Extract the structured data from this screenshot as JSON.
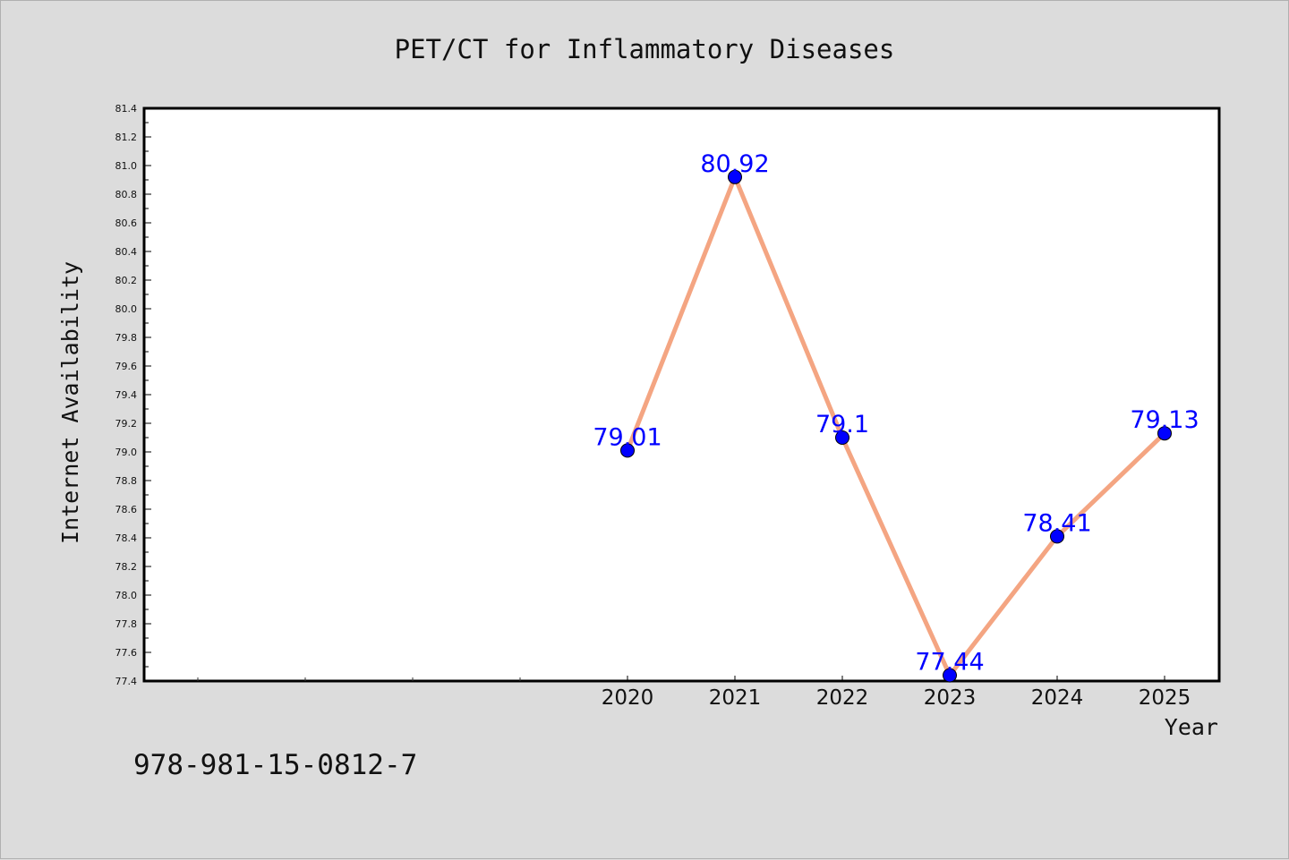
{
  "chart_data": {
    "type": "line",
    "title": "PET/CT for Inflammatory Diseases",
    "xlabel": "Year",
    "ylabel": "Internet Availability",
    "x": [
      "2020",
      "2021",
      "2022",
      "2023",
      "2024",
      "2025"
    ],
    "values": [
      79.01,
      80.92,
      79.1,
      77.44,
      78.41,
      79.13
    ],
    "data_labels": [
      "79.01",
      "80.92",
      "79.1",
      "77.44",
      "78.41",
      "79.13"
    ],
    "ylim": [
      77.4,
      81.4
    ],
    "yticks": [
      "77.4",
      "77.6",
      "77.8",
      "78.0",
      "78.2",
      "78.4",
      "78.6",
      "78.8",
      "79.0",
      "79.2",
      "79.4",
      "79.6",
      "79.8",
      "80.0",
      "80.2",
      "80.4",
      "80.6",
      "80.8",
      "81.0",
      "81.2",
      "81.4"
    ],
    "grid": false,
    "line_color": "#f4a582",
    "marker_color": "#0000ff",
    "label_color": "#0000ff"
  },
  "footer_text": "978-981-15-0812-7"
}
